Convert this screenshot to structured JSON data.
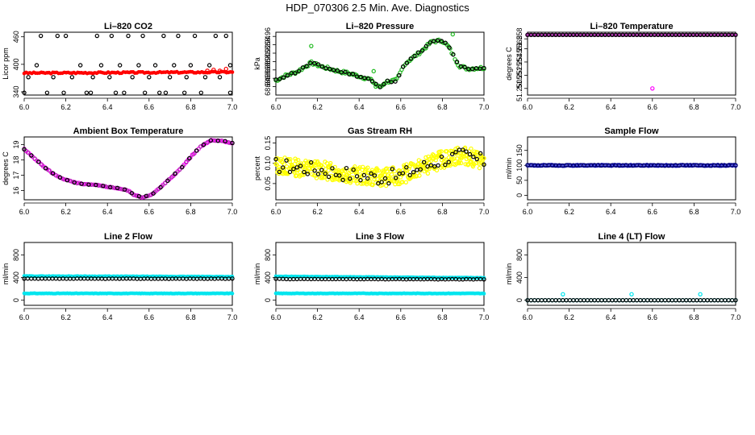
{
  "main_title": "HDP_070306  2.5 Min. Ave. Diagnostics",
  "colors": {
    "red": "#ff0000",
    "black": "#000000",
    "green": "#22bb22",
    "magenta": "#ff00ff",
    "purple": "#aa33aa",
    "yellow": "#ffff00",
    "blue": "#0000bb",
    "navy": "#000066",
    "cyan": "#00e5ee"
  },
  "chart_data": [
    {
      "type": "scatter",
      "title": "Li–820 CO2",
      "ylabel": "Licor ppm",
      "xlim": [
        6.0,
        7.0
      ],
      "ylim": [
        333,
        470
      ],
      "xticks": [
        "6.0",
        "6.2",
        "6.4",
        "6.6",
        "6.8",
        "7.0"
      ],
      "yticks": [
        {
          "v": 340,
          "label": "340"
        },
        {
          "v": 400,
          "label": "400"
        },
        {
          "v": 460,
          "label": "460"
        }
      ],
      "series": [
        {
          "name": "co2-red",
          "color": "red",
          "shape": "dot",
          "gen": {
            "kind": "band",
            "n": 110,
            "y0": 381,
            "y1": 383,
            "noise": 1.5,
            "seed": 3
          }
        },
        {
          "name": "co2-red-tail",
          "color": "red",
          "shape": "circle",
          "points": [
            [
              6.88,
              386
            ],
            [
              6.91,
              388
            ],
            [
              6.94,
              386
            ],
            [
              6.97,
              390
            ]
          ]
        },
        {
          "name": "co2-black",
          "color": "black",
          "shape": "circle",
          "points": [
            [
              6.0,
              338
            ],
            [
              6.02,
              372
            ],
            [
              6.06,
              398
            ],
            [
              6.08,
              462
            ],
            [
              6.11,
              338
            ],
            [
              6.14,
              372
            ],
            [
              6.16,
              462
            ],
            [
              6.19,
              338
            ],
            [
              6.2,
              462
            ],
            [
              6.23,
              372
            ],
            [
              6.27,
              398
            ],
            [
              6.3,
              338
            ],
            [
              6.32,
              338
            ],
            [
              6.33,
              372
            ],
            [
              6.35,
              462
            ],
            [
              6.37,
              398
            ],
            [
              6.41,
              372
            ],
            [
              6.42,
              462
            ],
            [
              6.44,
              338
            ],
            [
              6.46,
              398
            ],
            [
              6.48,
              338
            ],
            [
              6.5,
              462
            ],
            [
              6.52,
              372
            ],
            [
              6.55,
              398
            ],
            [
              6.57,
              462
            ],
            [
              6.58,
              338
            ],
            [
              6.6,
              372
            ],
            [
              6.63,
              398
            ],
            [
              6.65,
              338
            ],
            [
              6.67,
              462
            ],
            [
              6.68,
              338
            ],
            [
              6.7,
              372
            ],
            [
              6.72,
              398
            ],
            [
              6.74,
              462
            ],
            [
              6.77,
              338
            ],
            [
              6.78,
              372
            ],
            [
              6.8,
              398
            ],
            [
              6.82,
              462
            ],
            [
              6.85,
              338
            ],
            [
              6.87,
              372
            ],
            [
              6.89,
              398
            ],
            [
              6.92,
              462
            ],
            [
              6.94,
              372
            ],
            [
              6.97,
              462
            ],
            [
              6.99,
              398
            ],
            [
              6.99,
              338
            ]
          ]
        }
      ]
    },
    {
      "type": "scatter",
      "title": "Li–820 Pressure",
      "ylabel": "kPa",
      "xlim": [
        6.0,
        7.0
      ],
      "ylim": [
        68.82,
        68.97
      ],
      "xticks": [
        "6.0",
        "6.2",
        "6.4",
        "6.6",
        "6.8",
        "7.0"
      ],
      "yticks": [
        {
          "v": 68.84,
          "label": "68.84"
        },
        {
          "v": 68.86,
          "label": "68.86"
        },
        {
          "v": 68.88,
          "label": "68.88"
        },
        {
          "v": 68.9,
          "label": "68.90"
        },
        {
          "v": 68.92,
          "label": "68.92"
        },
        {
          "v": 68.94,
          "label": "68.94"
        },
        {
          "v": 68.96,
          "label": "68.96"
        }
      ],
      "profile": [
        [
          6.0,
          68.855
        ],
        [
          6.05,
          68.867
        ],
        [
          6.1,
          68.875
        ],
        [
          6.17,
          68.897
        ],
        [
          6.22,
          68.888
        ],
        [
          6.3,
          68.877
        ],
        [
          6.35,
          68.872
        ],
        [
          6.4,
          68.865
        ],
        [
          6.45,
          68.858
        ],
        [
          6.5,
          68.838
        ],
        [
          6.53,
          68.852
        ],
        [
          6.58,
          68.855
        ],
        [
          6.62,
          68.895
        ],
        [
          6.7,
          68.925
        ],
        [
          6.75,
          68.948
        ],
        [
          6.8,
          68.95
        ],
        [
          6.83,
          68.935
        ],
        [
          6.88,
          68.89
        ],
        [
          6.92,
          68.883
        ],
        [
          7.0,
          68.885
        ]
      ],
      "series": [
        {
          "name": "pressure-green",
          "color": "green",
          "shape": "circle",
          "gen": {
            "kind": "profile",
            "n": 130,
            "noise": 0.0035,
            "seed": 7
          }
        },
        {
          "name": "pressure-green-outliers",
          "color": "green",
          "shape": "circle",
          "points": [
            [
              6.17,
              68.937
            ],
            [
              6.47,
              68.877
            ],
            [
              6.52,
              68.847
            ],
            [
              6.85,
              68.965
            ],
            [
              6.48,
              68.84
            ]
          ]
        },
        {
          "name": "pressure-black",
          "color": "black",
          "shape": "circle",
          "gen": {
            "kind": "profile",
            "n": 55,
            "noise": 0.0025,
            "seed": 11
          }
        }
      ]
    },
    {
      "type": "scatter",
      "title": "Li–820 Temperature",
      "ylabel": "degrees C",
      "xlim": [
        6.0,
        7.0
      ],
      "ylim": [
        51.2495,
        51.259
      ],
      "xticks": [
        "6.0",
        "6.2",
        "6.4",
        "6.6",
        "6.8",
        "7.0"
      ],
      "yticks": [
        {
          "v": 51.2505,
          "label": "51.2505"
        },
        {
          "v": 51.2525,
          "label": "51.2525"
        },
        {
          "v": 51.2545,
          "label": "51.2545"
        },
        {
          "v": 51.2565,
          "label": "51.2565"
        },
        {
          "v": 51.258,
          "label": "51.258"
        }
      ],
      "series": [
        {
          "name": "temp-line",
          "color": "purple",
          "shape": "dot",
          "gen": {
            "kind": "band",
            "n": 110,
            "y0": 51.2586,
            "y1": 51.2586,
            "noise": 0.0,
            "seed": 1
          }
        },
        {
          "name": "temp-magenta",
          "color": "magenta",
          "shape": "circle",
          "points": [
            [
              6.0,
              51.2586
            ],
            [
              6.6,
              51.2505
            ]
          ]
        },
        {
          "name": "temp-black",
          "color": "black",
          "shape": "circle",
          "gen": {
            "kind": "band",
            "n": 60,
            "y0": 51.2586,
            "y1": 51.2586,
            "noise": 0.0,
            "seed": 2
          }
        }
      ]
    },
    {
      "type": "scatter",
      "title": "Ambient Box Temperature",
      "ylabel": "degrees C",
      "xlim": [
        6.0,
        7.0
      ],
      "ylim": [
        15.4,
        19.5
      ],
      "xticks": [
        "6.0",
        "6.2",
        "6.4",
        "6.6",
        "6.8",
        "7.0"
      ],
      "yticks": [
        {
          "v": 16,
          "label": "16"
        },
        {
          "v": 17,
          "label": "17"
        },
        {
          "v": 18,
          "label": "18"
        },
        {
          "v": 19,
          "label": "19"
        }
      ],
      "profile": [
        [
          6.0,
          18.7
        ],
        [
          6.05,
          18.1
        ],
        [
          6.1,
          17.5
        ],
        [
          6.15,
          17.0
        ],
        [
          6.2,
          16.7
        ],
        [
          6.25,
          16.5
        ],
        [
          6.3,
          16.4
        ],
        [
          6.35,
          16.35
        ],
        [
          6.4,
          16.25
        ],
        [
          6.45,
          16.15
        ],
        [
          6.5,
          16.0
        ],
        [
          6.53,
          15.7
        ],
        [
          6.57,
          15.55
        ],
        [
          6.62,
          15.8
        ],
        [
          6.67,
          16.4
        ],
        [
          6.75,
          17.4
        ],
        [
          6.8,
          18.2
        ],
        [
          6.85,
          18.9
        ],
        [
          6.9,
          19.3
        ],
        [
          6.95,
          19.25
        ],
        [
          7.0,
          19.1
        ]
      ],
      "series": [
        {
          "name": "ambient-magenta",
          "color": "magenta",
          "shape": "circle",
          "gen": {
            "kind": "profile",
            "n": 100,
            "noise": 0.03,
            "seed": 5
          }
        },
        {
          "name": "ambient-purple",
          "color": "purple",
          "shape": "circle",
          "gen": {
            "kind": "profile",
            "n": 60,
            "noise": 0.02,
            "seed": 6
          }
        },
        {
          "name": "ambient-black",
          "color": "black",
          "shape": "circle",
          "gen": {
            "kind": "profile",
            "n": 30,
            "noise": 0.02,
            "seed": 9
          }
        }
      ]
    },
    {
      "type": "scatter",
      "title": "Gas Stream RH",
      "ylabel": "percent",
      "xlim": [
        6.0,
        7.0
      ],
      "ylim": [
        0.01,
        0.165
      ],
      "xticks": [
        "6.0",
        "6.2",
        "6.4",
        "6.6",
        "6.8",
        "7.0"
      ],
      "yticks": [
        {
          "v": 0.05,
          "label": "0.05"
        },
        {
          "v": 0.1,
          "label": "0.10"
        },
        {
          "v": 0.15,
          "label": "0.15"
        }
      ],
      "profile": [
        [
          6.0,
          0.095
        ],
        [
          6.2,
          0.085
        ],
        [
          6.4,
          0.07
        ],
        [
          6.5,
          0.065
        ],
        [
          6.6,
          0.07
        ],
        [
          6.7,
          0.09
        ],
        [
          6.8,
          0.11
        ],
        [
          6.9,
          0.12
        ],
        [
          7.0,
          0.105
        ]
      ],
      "series": [
        {
          "name": "rh-yellow",
          "color": "yellow",
          "shape": "circle",
          "gen": {
            "kind": "profile",
            "n": 420,
            "noise": 0.022,
            "seed": 13
          }
        },
        {
          "name": "rh-black",
          "color": "black",
          "shape": "circle",
          "gen": {
            "kind": "profile",
            "n": 60,
            "noise": 0.018,
            "seed": 17
          }
        }
      ]
    },
    {
      "type": "scatter",
      "title": "Sample Flow",
      "ylabel": "ml/min",
      "xlim": [
        6.0,
        7.0
      ],
      "ylim": [
        -15,
        195
      ],
      "xticks": [
        "6.0",
        "6.2",
        "6.4",
        "6.6",
        "6.8",
        "7.0"
      ],
      "yticks": [
        {
          "v": 0,
          "label": "0"
        },
        {
          "v": 50,
          "label": "50"
        },
        {
          "v": 100,
          "label": "100"
        },
        {
          "v": 150,
          "label": "150"
        }
      ],
      "series": [
        {
          "name": "sample-blue",
          "color": "blue",
          "shape": "circle",
          "gen": {
            "kind": "band",
            "n": 130,
            "y0": 100,
            "y1": 100,
            "noise": 1.2,
            "seed": 19
          }
        },
        {
          "name": "sample-navy",
          "color": "navy",
          "shape": "circle",
          "gen": {
            "kind": "band",
            "n": 60,
            "y0": 100,
            "y1": 100,
            "noise": 1.0,
            "seed": 23
          }
        }
      ]
    },
    {
      "type": "scatter",
      "title": "Line 2 Flow",
      "ylabel": "ml/min",
      "xlim": [
        6.0,
        7.0
      ],
      "ylim": [
        -90,
        1020
      ],
      "xticks": [
        "6.0",
        "6.2",
        "6.4",
        "6.6",
        "6.8",
        "7.0"
      ],
      "yticks": [
        {
          "v": 0,
          "label": "0"
        },
        {
          "v": 400,
          "label": "400"
        },
        {
          "v": 800,
          "label": "800"
        }
      ],
      "series": [
        {
          "name": "line2-cyan-high",
          "color": "cyan",
          "shape": "dot",
          "gen": {
            "kind": "band",
            "n": 160,
            "y0": 425,
            "y1": 415,
            "noise": 4,
            "seed": 29
          }
        },
        {
          "name": "line2-cyan-low",
          "color": "cyan",
          "shape": "dot",
          "gen": {
            "kind": "band",
            "n": 160,
            "y0": 120,
            "y1": 120,
            "noise": 4,
            "seed": 31
          }
        },
        {
          "name": "line2-black",
          "color": "black",
          "shape": "circle",
          "gen": {
            "kind": "band",
            "n": 60,
            "y0": 380,
            "y1": 380,
            "noise": 3,
            "seed": 37
          }
        }
      ]
    },
    {
      "type": "scatter",
      "title": "Line 3 Flow",
      "ylabel": "ml/min",
      "xlim": [
        6.0,
        7.0
      ],
      "ylim": [
        -90,
        1020
      ],
      "xticks": [
        "6.0",
        "6.2",
        "6.4",
        "6.6",
        "6.8",
        "7.0"
      ],
      "yticks": [
        {
          "v": 0,
          "label": "0"
        },
        {
          "v": 400,
          "label": "400"
        },
        {
          "v": 800,
          "label": "800"
        }
      ],
      "series": [
        {
          "name": "line3-cyan-high",
          "color": "cyan",
          "shape": "dot",
          "gen": {
            "kind": "band",
            "n": 160,
            "y0": 420,
            "y1": 395,
            "noise": 4,
            "seed": 41
          }
        },
        {
          "name": "line3-cyan-low",
          "color": "cyan",
          "shape": "dot",
          "gen": {
            "kind": "band",
            "n": 160,
            "y0": 120,
            "y1": 120,
            "noise": 4,
            "seed": 43
          }
        },
        {
          "name": "line3-black",
          "color": "black",
          "shape": "circle",
          "gen": {
            "kind": "band",
            "n": 60,
            "y0": 375,
            "y1": 370,
            "noise": 3,
            "seed": 47
          }
        }
      ]
    },
    {
      "type": "scatter",
      "title": "Line 4 (LT) Flow",
      "ylabel": "ml/min",
      "xlim": [
        6.0,
        7.0
      ],
      "ylim": [
        -90,
        1020
      ],
      "xticks": [
        "6.0",
        "6.2",
        "6.4",
        "6.6",
        "6.8",
        "7.0"
      ],
      "yticks": [
        {
          "v": 0,
          "label": "0"
        },
        {
          "v": 400,
          "label": "400"
        },
        {
          "v": 800,
          "label": "800"
        }
      ],
      "series": [
        {
          "name": "line4-cyan",
          "color": "cyan",
          "shape": "circle",
          "gen": {
            "kind": "band",
            "n": 60,
            "y0": 0,
            "y1": 0,
            "noise": 0,
            "seed": 53
          }
        },
        {
          "name": "line4-cyan-spikes",
          "color": "cyan",
          "shape": "circle",
          "points": [
            [
              6.17,
              105
            ],
            [
              6.5,
              105
            ],
            [
              6.83,
              105
            ]
          ]
        },
        {
          "name": "line4-black",
          "color": "black",
          "shape": "circle",
          "gen": {
            "kind": "band",
            "n": 60,
            "y0": 0,
            "y1": 0,
            "noise": 0,
            "seed": 59
          }
        }
      ]
    }
  ]
}
